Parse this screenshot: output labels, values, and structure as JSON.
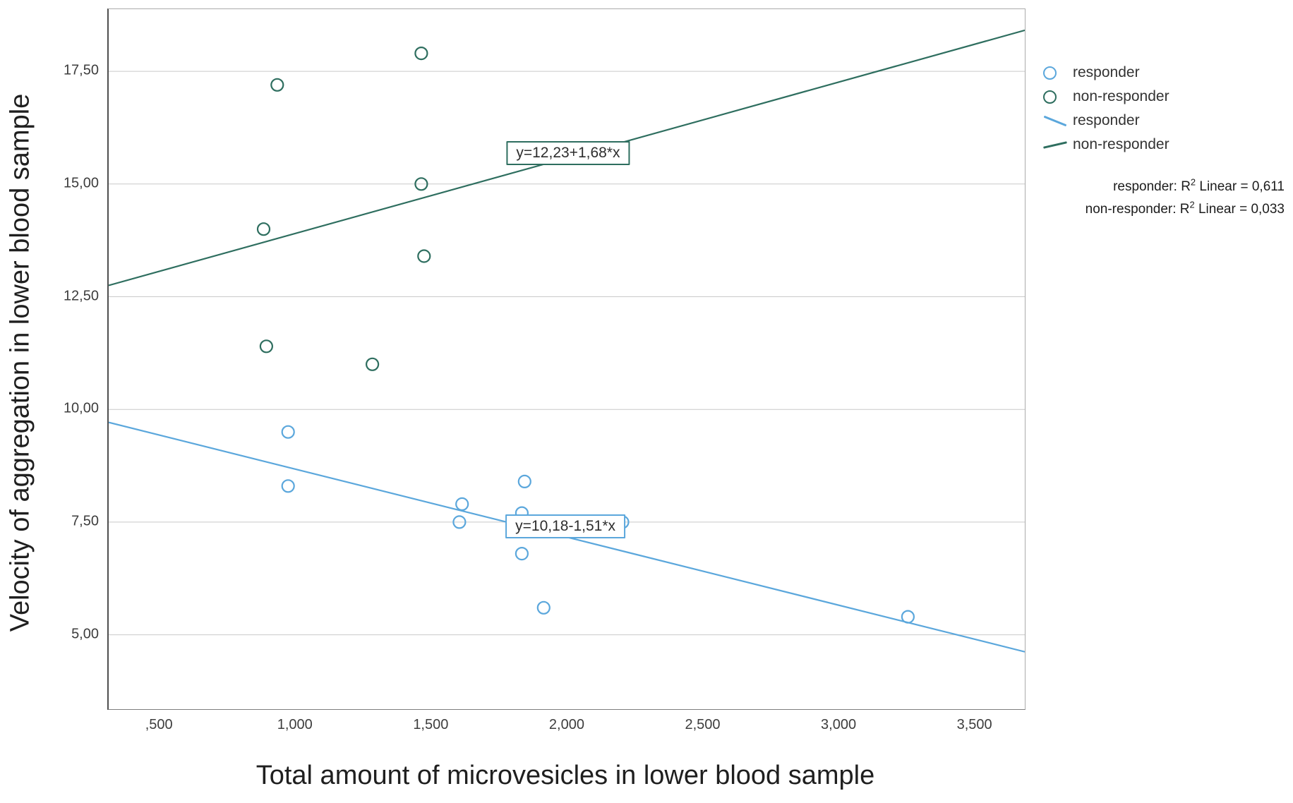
{
  "chart_data": {
    "type": "scatter",
    "title": "",
    "xlabel": "Total amount of microvesicles in lower blood sample",
    "ylabel": "Velocity of aggregation in lower blood sample",
    "x_range": [
      0.31,
      3.68
    ],
    "y_range": [
      3.35,
      18.88
    ],
    "grid": "horizontal-only",
    "legend_position": "top-right-outside",
    "x_ticks": [
      {
        "value": 0.5,
        "label": ",500"
      },
      {
        "value": 1.0,
        "label": "1,000"
      },
      {
        "value": 1.5,
        "label": "1,500"
      },
      {
        "value": 2.0,
        "label": "2,000"
      },
      {
        "value": 2.5,
        "label": "2,500"
      },
      {
        "value": 3.0,
        "label": "3,000"
      },
      {
        "value": 3.5,
        "label": "3,500"
      }
    ],
    "y_ticks": [
      {
        "value": 5.0,
        "label": "5,00"
      },
      {
        "value": 7.5,
        "label": "7,50"
      },
      {
        "value": 10.0,
        "label": "10,00"
      },
      {
        "value": 12.5,
        "label": "12,50"
      },
      {
        "value": 15.0,
        "label": "15,00"
      },
      {
        "value": 17.5,
        "label": "17,50"
      }
    ],
    "series": [
      {
        "name": "responder",
        "color": "#5ba7dc",
        "marker": "open-circle",
        "points": [
          [
            0.97,
            9.5
          ],
          [
            0.97,
            8.3
          ],
          [
            1.6,
            7.5
          ],
          [
            1.61,
            7.9
          ],
          [
            1.83,
            7.7
          ],
          [
            1.83,
            6.8
          ],
          [
            1.84,
            8.4
          ],
          [
            1.91,
            5.6
          ],
          [
            2.2,
            7.5
          ],
          [
            3.25,
            5.4
          ]
        ],
        "fit": {
          "slope": -1.51,
          "intercept": 10.18,
          "equation": "y=10,18-1,51*x",
          "anchor": [
            1.99,
            7.41
          ],
          "r2": "0,611"
        }
      },
      {
        "name": "non-responder",
        "color": "#2e6e5f",
        "marker": "open-circle",
        "points": [
          [
            0.93,
            17.2
          ],
          [
            1.46,
            17.9
          ],
          [
            0.88,
            14.0
          ],
          [
            1.46,
            15.0
          ],
          [
            1.47,
            13.4
          ],
          [
            0.89,
            11.4
          ],
          [
            1.28,
            11.0
          ]
        ],
        "fit": {
          "slope": 1.68,
          "intercept": 12.23,
          "equation": "y=12,23+1,68*x",
          "anchor": [
            2.0,
            15.69
          ],
          "r2": "0,033"
        }
      }
    ],
    "legend": {
      "marker_items": [
        {
          "label": "responder",
          "color": "#5ba7dc"
        },
        {
          "label": "non-responder",
          "color": "#2e6e5f"
        }
      ],
      "line_items": [
        {
          "label": "responder",
          "color": "#5ba7dc"
        },
        {
          "label": "non-responder",
          "color": "#2e6e5f"
        }
      ]
    },
    "annotations": [
      {
        "prefix": "responder: R",
        "sup": "2",
        "suffix": " Linear = 0,611"
      },
      {
        "prefix": "non-responder: R",
        "sup": "2",
        "suffix": " Linear = 0,033"
      }
    ]
  }
}
